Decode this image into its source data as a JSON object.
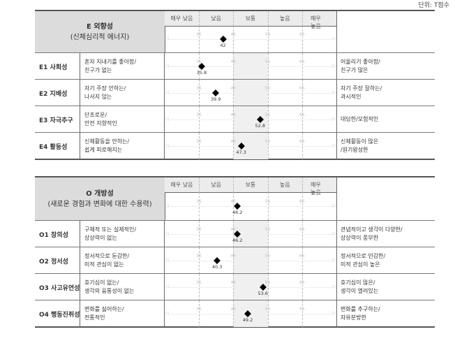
{
  "unit_label": "단위: T점수",
  "scale": {
    "labels": [
      "매우 낮음",
      "낮음",
      "보통",
      "높음",
      "매우 높음"
    ],
    "ticks": [
      35,
      45,
      55,
      65
    ],
    "min": 25,
    "max": 75,
    "average_band": [
      45,
      55
    ]
  },
  "sections": [
    {
      "title": "E 외향성",
      "subtitle": "(신체심리적 에너지)",
      "score": 42,
      "rows": [
        {
          "code": "E1 사회성",
          "low": "혼자 지내기를 좋아함/\n친구가 없는",
          "high": "어울리기 좋아함/\n친구가 많은",
          "score": 35.8
        },
        {
          "code": "E2 지배성",
          "low": "자기 주장 안하는/\n나서지 않는",
          "high": "자기 주장 잘하는/\n과시적인",
          "score": 39.9
        },
        {
          "code": "E3 자극추구",
          "low": "단조로운/\n안전 지향적인",
          "high": "대담한/모험적인",
          "score": 52.8
        },
        {
          "code": "E4 활동성",
          "low": "신체활동을 안하는/\n쉽게 피로해지는",
          "high": "신체활동이 많은\n/원기왕성한",
          "score": 47.3
        }
      ]
    },
    {
      "title": "O 개방성",
      "subtitle": "(새로운 경험과 변화에 대한 수용력)",
      "score": 46.2,
      "rows": [
        {
          "code": "O1 창의성",
          "low": "구체적 또는 실제적인/\n상상력이 없는",
          "high": "관념적이고 생각이 다양한/\n상상력이 풍부한",
          "score": 46.2
        },
        {
          "code": "O2 정서성",
          "low": "정서적으로 둔감한/\n미적 관심이 없는",
          "high": "정서적으로 민감한/\n미적 관심이 높은",
          "score": 40.3
        },
        {
          "code": "O3 사고유연성",
          "low": "호기심이 없는/\n생각의 융통성이 없는",
          "high": "호기심이 많은/\n생각이 열려있는",
          "score": 53.6
        },
        {
          "code": "O4 행동진취성",
          "low": "변화를 싫어하는/\n전통적인",
          "high": "변화를 추구하는/\n자유분방한",
          "score": 49.2
        }
      ]
    }
  ]
}
